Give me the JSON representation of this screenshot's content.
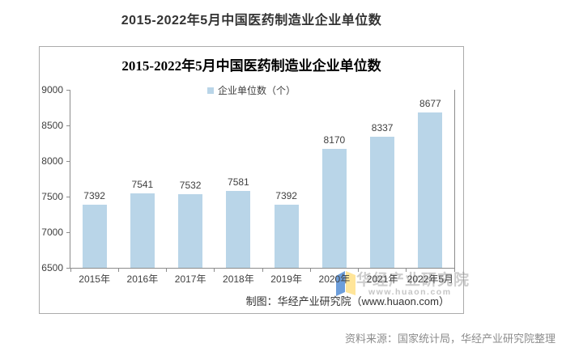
{
  "page": {
    "title": "2015-2022年5月中国医药制造业企业单位数",
    "source_note": "资料来源：国家统计局，华经产业研究院整理"
  },
  "chart": {
    "title": "2015-2022年5月中国医药制造业企业单位数",
    "legend_label": "企业单位数（个）",
    "caption": "制图：华经产业研究院（www.huaon.com）",
    "watermark_name": "华经产业研究院",
    "watermark_url": "www.huaon.com"
  },
  "chart_data": {
    "type": "bar",
    "title": "2015-2022年5月中国医药制造业企业单位数",
    "series_name": "企业单位数（个）",
    "categories": [
      "2015年",
      "2016年",
      "2017年",
      "2018年",
      "2019年",
      "2020年",
      "2021年",
      "2022年5月"
    ],
    "values": [
      7392,
      7541,
      7532,
      7581,
      7392,
      8170,
      8337,
      8677
    ],
    "ylim": [
      6500,
      9000
    ],
    "yticks": [
      6500,
      7000,
      7500,
      8000,
      8500,
      9000
    ],
    "grid": false,
    "legend_position": "top",
    "bar_color": "#b9d5e8"
  },
  "colors": {
    "bar": "#b9d5e8",
    "axis": "#8c8c8c",
    "chart_border": "#ababab",
    "text_dark": "#404040",
    "text_gray": "#8c8c8c",
    "watermark_gray": "#c4c4c4",
    "watermark_blue": "#6d9edb",
    "watermark_yellow": "#ffe599"
  }
}
